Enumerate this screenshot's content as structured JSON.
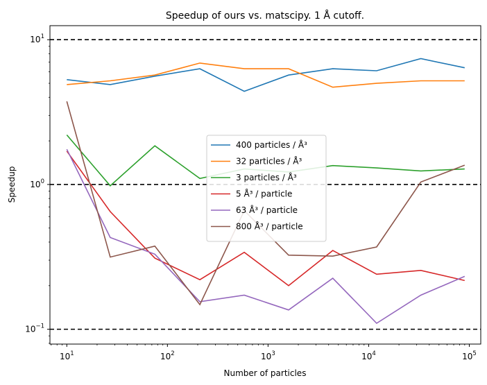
{
  "chart_data": {
    "type": "line",
    "title": "Speedup of ours vs. matscipy. 1 Å cutoff.",
    "xlabel": "Number of particles",
    "ylabel": "Speedup",
    "xscale": "log",
    "yscale": "log",
    "xlim": [
      6.8,
      130000
    ],
    "ylim": [
      0.079,
      12.5
    ],
    "x_ticks": [
      {
        "value": 10,
        "mantissa": "10",
        "exp": "1"
      },
      {
        "value": 100,
        "mantissa": "10",
        "exp": "2"
      },
      {
        "value": 1000,
        "mantissa": "10",
        "exp": "3"
      },
      {
        "value": 10000,
        "mantissa": "10",
        "exp": "4"
      },
      {
        "value": 100000,
        "mantissa": "10",
        "exp": "5"
      }
    ],
    "y_ticks": [
      {
        "value": 0.1,
        "mantissa": "10",
        "exp": "−1"
      },
      {
        "value": 1,
        "mantissa": "10",
        "exp": "0"
      },
      {
        "value": 10,
        "mantissa": "10",
        "exp": "1"
      }
    ],
    "reference_lines": [
      0.1,
      1,
      10
    ],
    "grid": false,
    "legend_position": "center",
    "x": [
      10,
      27,
      75,
      210,
      580,
      1600,
      4400,
      12000,
      33000,
      90000
    ],
    "series": [
      {
        "name": "400 particles / Å³",
        "color": "#1f77b4",
        "values": [
          5.3,
          4.9,
          5.6,
          6.3,
          4.4,
          5.7,
          6.3,
          6.1,
          7.4,
          6.4
        ]
      },
      {
        "name": "32 particles / Å³",
        "color": "#ff7f0e",
        "values": [
          4.9,
          5.2,
          5.7,
          6.9,
          6.3,
          6.3,
          4.7,
          5.0,
          5.2,
          5.2
        ]
      },
      {
        "name": "3 particles / Å³",
        "color": "#2ca02c",
        "values": [
          2.2,
          0.98,
          1.85,
          1.1,
          1.28,
          1.22,
          1.35,
          1.3,
          1.24,
          1.28
        ]
      },
      {
        "name": "5 Å³ / particle",
        "color": "#d62728",
        "values": [
          1.7,
          0.65,
          0.31,
          0.22,
          0.34,
          0.2,
          0.35,
          0.24,
          0.255,
          0.217
        ]
      },
      {
        "name": "63 Å³ / particle",
        "color": "#9467bd",
        "values": [
          1.75,
          0.43,
          0.33,
          0.155,
          0.172,
          0.136,
          0.225,
          0.11,
          0.172,
          0.232
        ]
      },
      {
        "name": "800 Å³ / particle",
        "color": "#8c564b",
        "values": [
          3.75,
          0.315,
          0.375,
          0.148,
          0.66,
          0.325,
          0.32,
          0.37,
          1.04,
          1.36
        ]
      }
    ]
  }
}
